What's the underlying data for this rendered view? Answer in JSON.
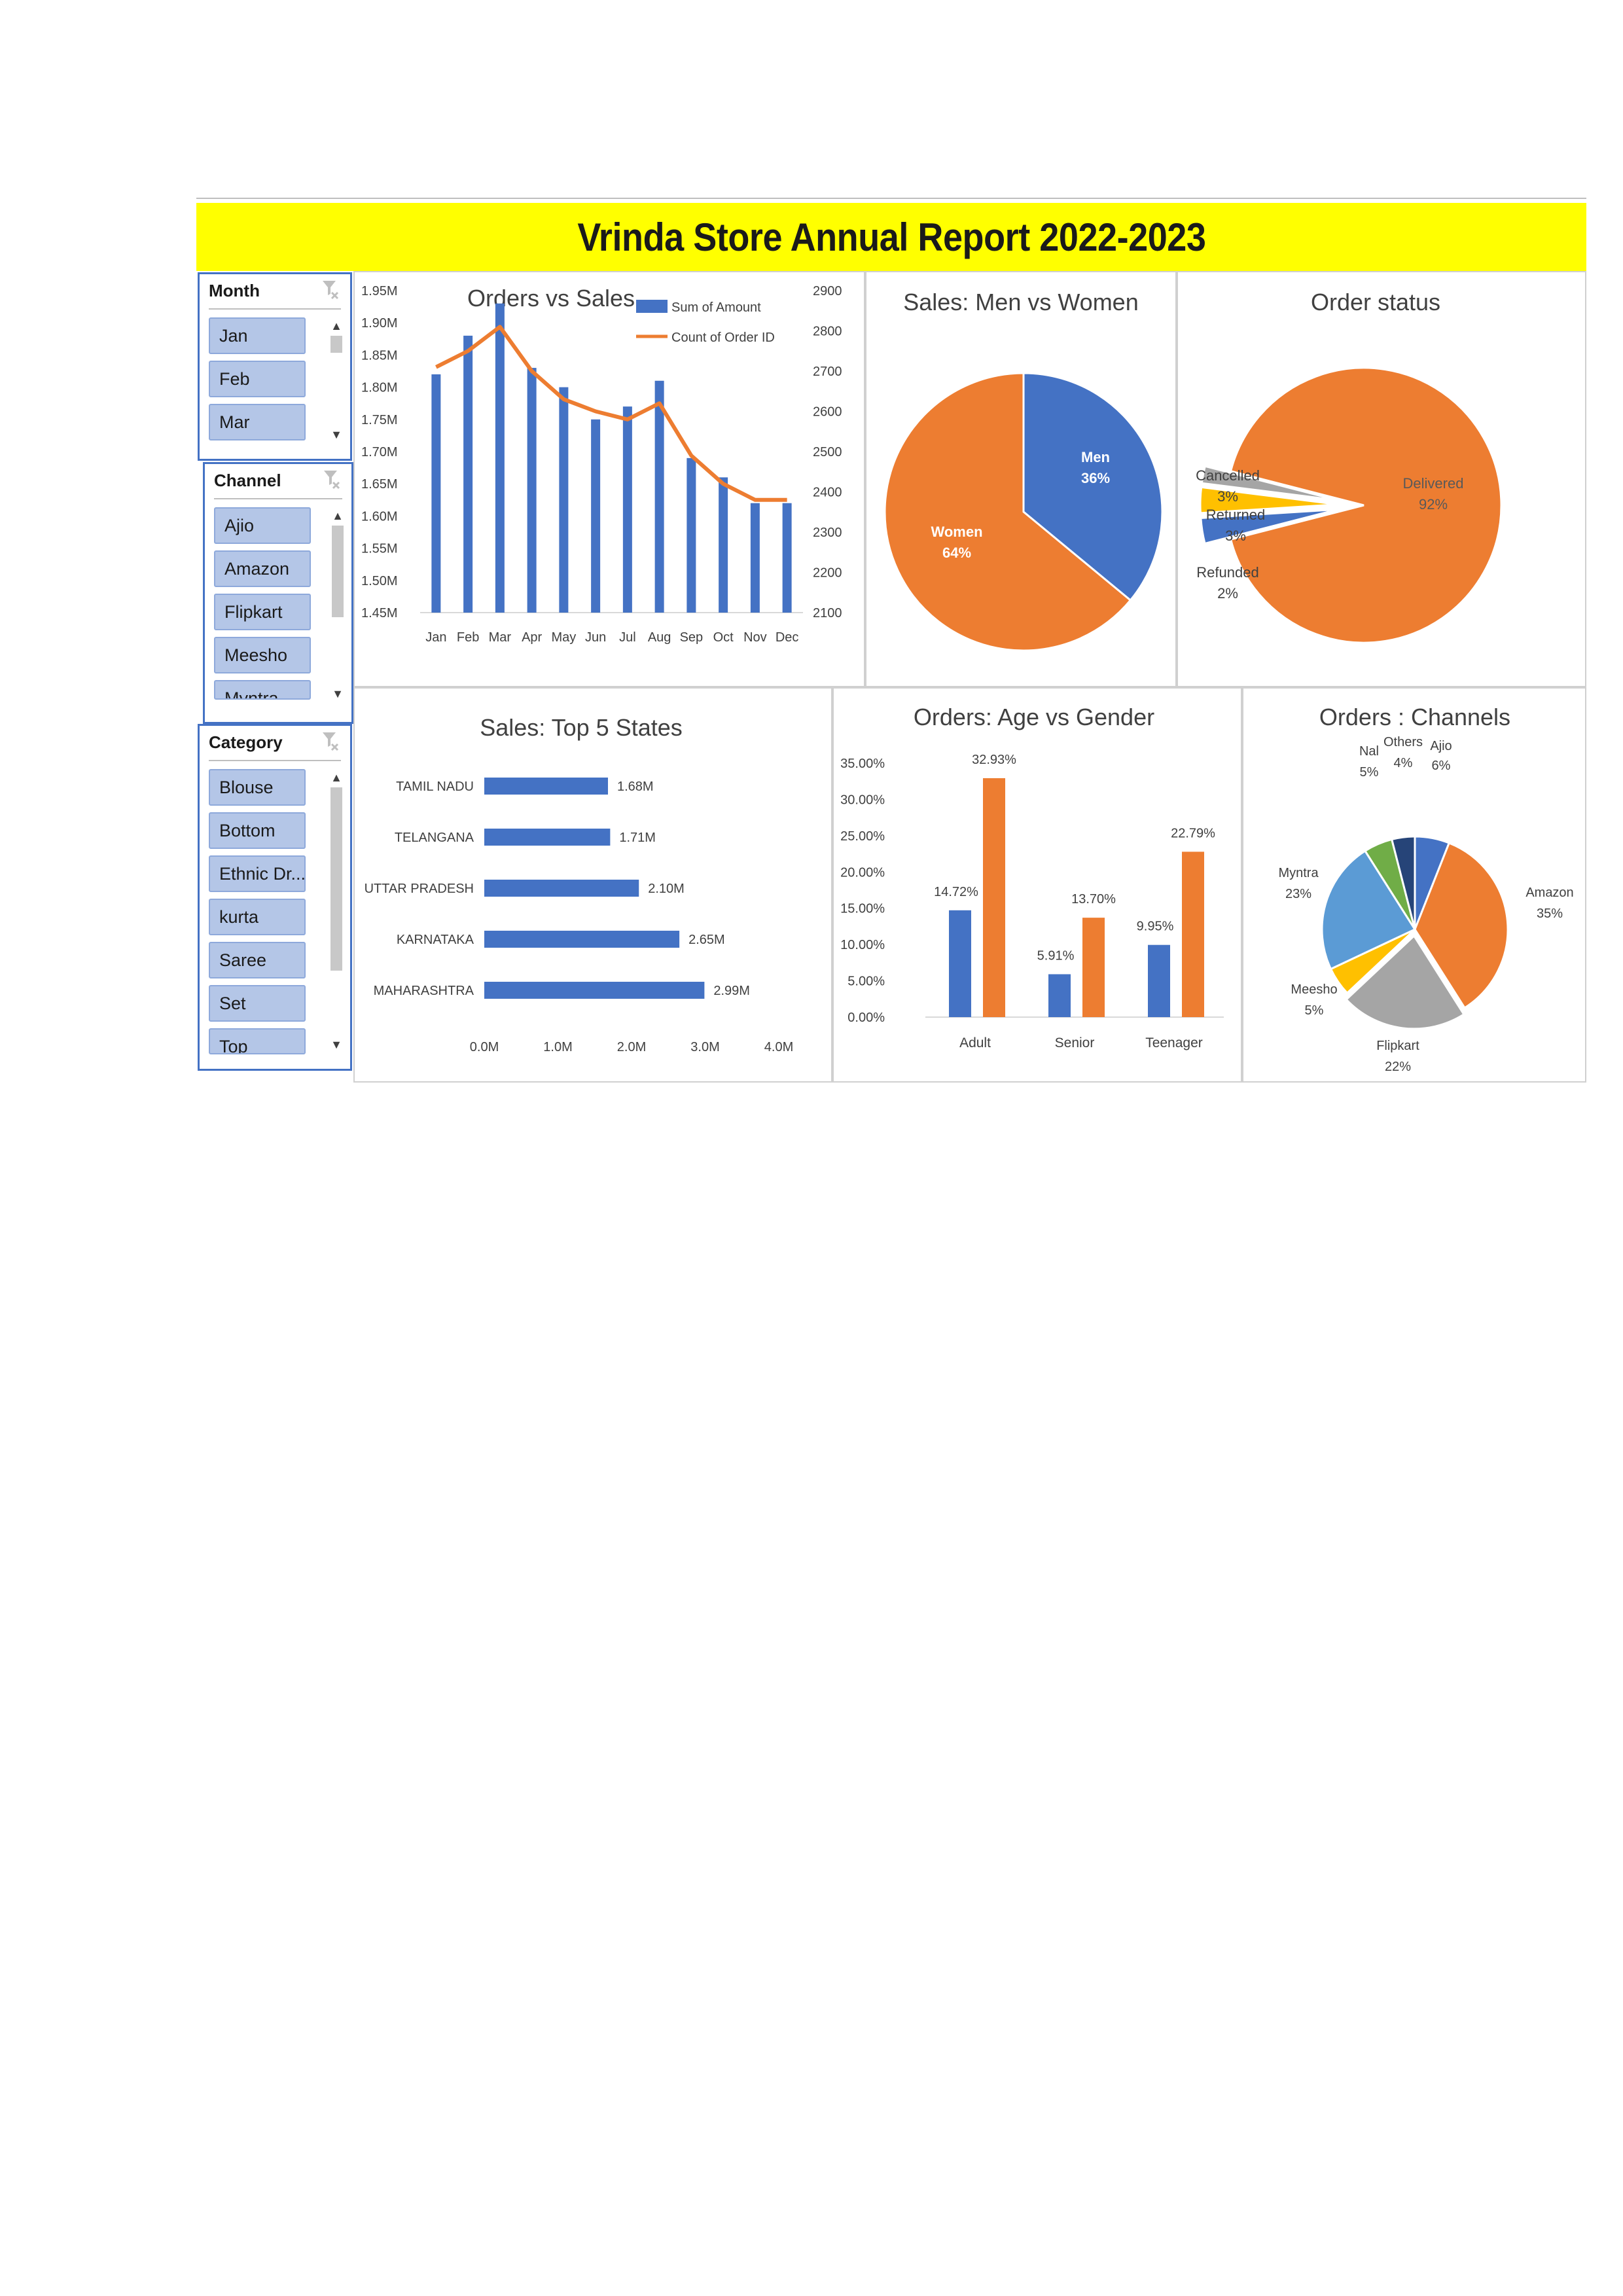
{
  "dashboard": {
    "title": "Vrinda Store Annual Report 2022-2023"
  },
  "slicers": {
    "month": {
      "header": "Month",
      "items": [
        "Jan",
        "Feb",
        "Mar"
      ]
    },
    "channel": {
      "header": "Channel",
      "items": [
        "Ajio",
        "Amazon",
        "Flipkart",
        "Meesho",
        "Myntra"
      ]
    },
    "category": {
      "header": "Category",
      "items": [
        "Blouse",
        "Bottom",
        "Ethnic Dr...",
        "kurta",
        "Saree",
        "Set",
        "Top"
      ]
    }
  },
  "colors": {
    "blue": "#4472c4",
    "orange": "#ed7d31",
    "gray": "#a5a5a5",
    "yellow": "#ffc000",
    "light_blue": "#5b9bd5",
    "green": "#70ad47",
    "navy": "#264478",
    "title_bg": "#ffff00",
    "slicer_item": "#b4c6e7"
  },
  "chart_data": [
    {
      "id": "orders_vs_sales",
      "type": "bar",
      "title": "Orders vs Sales",
      "categories": [
        "Jan",
        "Feb",
        "Mar",
        "Apr",
        "May",
        "Jun",
        "Jul",
        "Aug",
        "Sep",
        "Oct",
        "Nov",
        "Dec"
      ],
      "series": [
        {
          "name": "Sum of Amount",
          "type": "bar",
          "axis": "left",
          "values": [
            1.82,
            1.88,
            1.93,
            1.83,
            1.8,
            1.75,
            1.77,
            1.81,
            1.69,
            1.66,
            1.62,
            1.62
          ]
        },
        {
          "name": "Count of Order ID",
          "type": "line",
          "axis": "right",
          "values": [
            2710,
            2750,
            2810,
            2700,
            2630,
            2600,
            2580,
            2620,
            2490,
            2420,
            2380,
            2380
          ]
        }
      ],
      "left_axis": {
        "ylim": [
          1.45,
          1.95
        ],
        "ticks": [
          "1.45M",
          "1.50M",
          "1.55M",
          "1.60M",
          "1.65M",
          "1.70M",
          "1.75M",
          "1.80M",
          "1.85M",
          "1.90M",
          "1.95M"
        ]
      },
      "right_axis": {
        "ylim": [
          2100,
          2900
        ],
        "ticks": [
          "2100",
          "2200",
          "2300",
          "2400",
          "2500",
          "2600",
          "2700",
          "2800",
          "2900"
        ]
      },
      "legend": "top-right"
    },
    {
      "id": "men_vs_women",
      "type": "pie",
      "title": "Sales: Men vs Women",
      "slices": [
        {
          "label": "Men",
          "pct": "36%",
          "value": 36
        },
        {
          "label": "Women",
          "pct": "64%",
          "value": 64
        }
      ]
    },
    {
      "id": "order_status",
      "type": "pie",
      "title": "Order status",
      "slices": [
        {
          "label": "Delivered",
          "pct": "92%",
          "value": 92
        },
        {
          "label": "Cancelled",
          "pct": "3%",
          "value": 3
        },
        {
          "label": "Returned",
          "pct": "3%",
          "value": 3
        },
        {
          "label": "Refunded",
          "pct": "2%",
          "value": 2
        }
      ]
    },
    {
      "id": "top5_states",
      "type": "bar",
      "orientation": "horizontal",
      "title": "Sales: Top 5 States",
      "categories": [
        "TAMIL NADU",
        "TELANGANA",
        "UTTAR PRADESH",
        "KARNATAKA",
        "MAHARASHTRA"
      ],
      "values": [
        1.68,
        1.71,
        2.1,
        2.65,
        2.99
      ],
      "labels": [
        "1.68M",
        "1.71M",
        "2.10M",
        "2.65M",
        "2.99M"
      ],
      "xlim": [
        0,
        4
      ],
      "xticks": [
        "0.0M",
        "1.0M",
        "2.0M",
        "3.0M",
        "4.0M"
      ]
    },
    {
      "id": "age_vs_gender",
      "type": "bar",
      "title": "Orders: Age vs Gender",
      "categories": [
        "Adult",
        "Senior",
        "Teenager"
      ],
      "series": [
        {
          "values": [
            14.72,
            5.91,
            9.95
          ],
          "labels": [
            "14.72%",
            "5.91%",
            "9.95%"
          ]
        },
        {
          "values": [
            32.93,
            13.7,
            22.79
          ],
          "labels": [
            "32.93%",
            "13.70%",
            "22.79%"
          ]
        }
      ],
      "ylim": [
        0,
        35
      ],
      "yticks": [
        "0.00%",
        "5.00%",
        "10.00%",
        "15.00%",
        "20.00%",
        "25.00%",
        "30.00%",
        "35.00%"
      ]
    },
    {
      "id": "channels",
      "type": "pie",
      "title": "Orders : Channels",
      "slices": [
        {
          "label": "Ajio",
          "pct": "6%",
          "value": 6
        },
        {
          "label": "Amazon",
          "pct": "35%",
          "value": 35
        },
        {
          "label": "Flipkart",
          "pct": "22%",
          "value": 22
        },
        {
          "label": "Meesho",
          "pct": "5%",
          "value": 5
        },
        {
          "label": "Myntra",
          "pct": "23%",
          "value": 23
        },
        {
          "label": "Nal",
          "pct": "5%",
          "value": 5
        },
        {
          "label": "Others",
          "pct": "4%",
          "value": 4
        }
      ]
    }
  ]
}
